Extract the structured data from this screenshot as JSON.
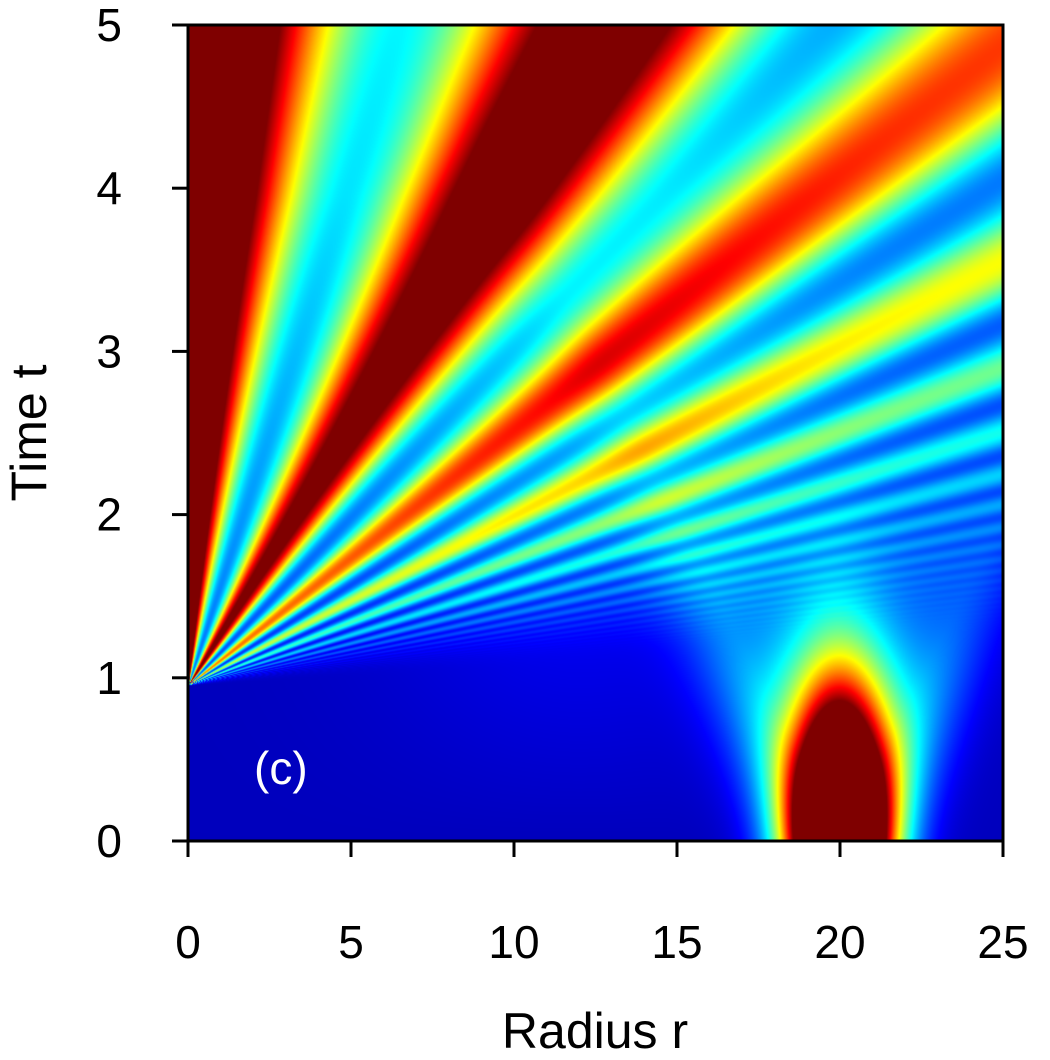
{
  "chart_data": {
    "type": "heatmap",
    "title": "",
    "panel_label": "(c)",
    "xlabel": "Radius r",
    "ylabel": "Time t",
    "xlim": [
      0,
      25
    ],
    "ylim": [
      0,
      5
    ],
    "x_ticks": [
      0,
      5,
      10,
      15,
      20,
      25
    ],
    "y_ticks": [
      0,
      1,
      2,
      3,
      4,
      5
    ],
    "colormap": "jet",
    "colormap_stops": [
      "#00007f",
      "#0000ff",
      "#00ffff",
      "#ffff00",
      "#ff0000",
      "#7f0000"
    ],
    "features": {
      "initial_pulse_center_r": 20,
      "initial_pulse_peak_t": 0,
      "fan_origin": [
        0,
        1.1
      ],
      "description_wedge_bounds": [
        0,
        5
      ]
    }
  }
}
